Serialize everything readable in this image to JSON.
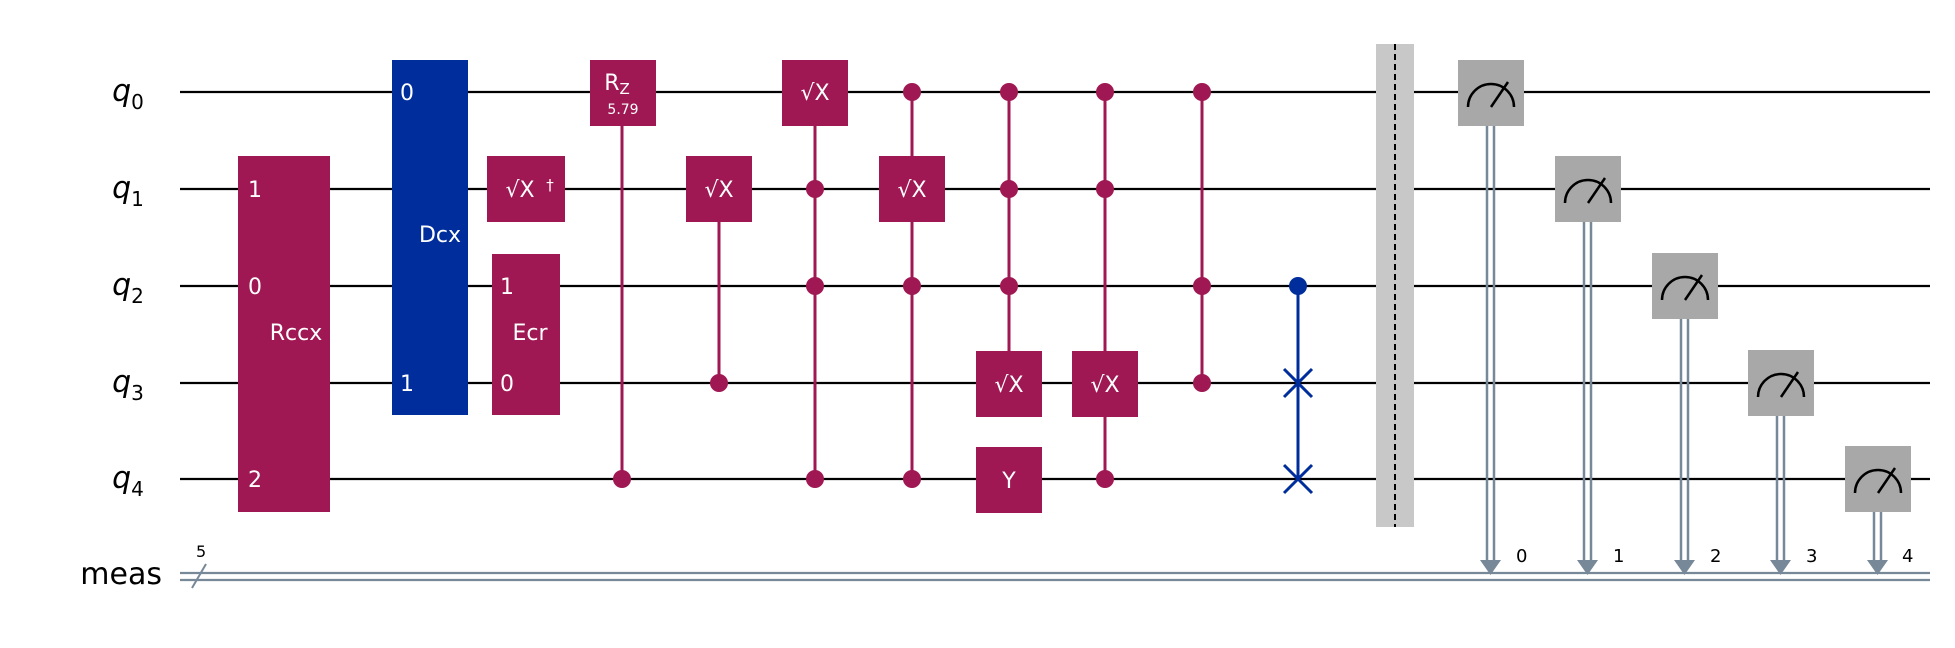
{
  "colors": {
    "wire": "#000000",
    "classical": "#778899",
    "magenta": "#9f1853",
    "blue": "#002d9c",
    "measure": "#a8a8a8",
    "barrier": "#c8c8c8",
    "gate_text": "#ffffff"
  },
  "qubits": [
    "q",
    "q",
    "q",
    "q",
    "q"
  ],
  "qubit_subscripts": [
    "0",
    "1",
    "2",
    "3",
    "4"
  ],
  "classical_register": {
    "name": "meas",
    "size": "5",
    "bit_labels": [
      "0",
      "1",
      "2",
      "3",
      "4"
    ]
  },
  "gates": {
    "rccx": {
      "label": "Rccx",
      "pins": [
        "1",
        "0",
        "2"
      ]
    },
    "dcx": {
      "label": "Dcx",
      "pins": [
        "0",
        "1"
      ]
    },
    "sxdg": {
      "label": "√X",
      "dagger": "†"
    },
    "ecr": {
      "label": "Ecr",
      "pins": [
        "1",
        "0"
      ]
    },
    "rz": {
      "label": "R",
      "sub": "Z",
      "param": "5.79"
    },
    "sx": {
      "label": "√X"
    },
    "y": {
      "label": "Y"
    }
  },
  "icons": {
    "measure": "meter-icon",
    "swap": "swap-x-icon",
    "barrier": "barrier-dashed-line"
  }
}
